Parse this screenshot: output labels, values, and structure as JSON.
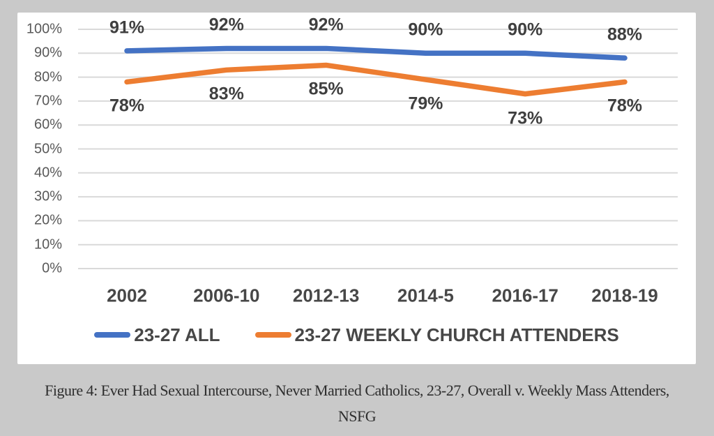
{
  "chart_data": {
    "type": "line",
    "categories": [
      "2002",
      "2006-10",
      "2012-13",
      "2014-5",
      "2016-17",
      "2018-19"
    ],
    "series": [
      {
        "name": "23-27 ALL",
        "color": "#4472c4",
        "values": [
          91,
          92,
          92,
          90,
          90,
          88
        ]
      },
      {
        "name": "23-27 WEEKLY CHURCH ATTENDERS",
        "color": "#ed7d31",
        "values": [
          78,
          83,
          85,
          79,
          73,
          78
        ]
      }
    ],
    "yticks": [
      "100%",
      "90%",
      "80%",
      "70%",
      "60%",
      "50%",
      "40%",
      "30%",
      "20%",
      "10%",
      "0%"
    ],
    "ylim": [
      0,
      100
    ],
    "grid": true,
    "legend_position": "bottom",
    "data_label_suffix": "%",
    "title": "",
    "xlabel": "",
    "ylabel": ""
  },
  "colors": {
    "page_background": "#c9c9c9",
    "plot_background": "#ffffff",
    "gridline": "#d9d9d9",
    "axis_text": "#595959",
    "label_text": "#3f3f3f"
  },
  "caption": {
    "line1": "Figure 4: Ever Had Sexual Intercourse, Never Married Catholics, 23-27, Overall v. Weekly Mass Attenders,",
    "line2": "NSFG"
  }
}
